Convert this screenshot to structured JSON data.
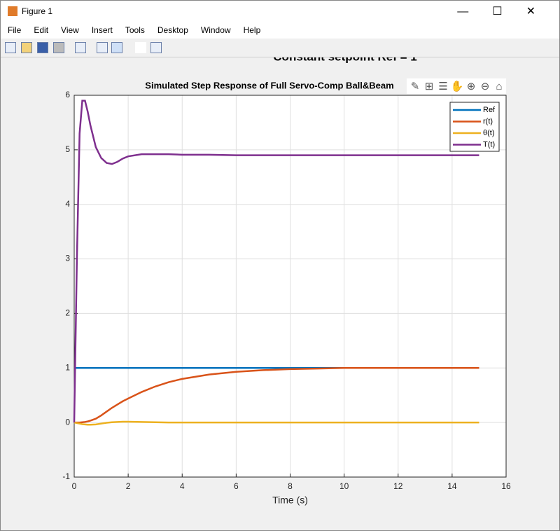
{
  "window": {
    "title": "Figure 1",
    "menu": [
      "File",
      "Edit",
      "View",
      "Insert",
      "Tools",
      "Desktop",
      "Window",
      "Help"
    ]
  },
  "chart_data": {
    "type": "line",
    "annotation": "Constant setpoint Ref = 1",
    "title": "Simulated Step Response of Full Servo-Comp Ball&Beam",
    "x_label": "Time (s)",
    "x": [
      0,
      0.1,
      0.2,
      0.3,
      0.4,
      0.5,
      0.6,
      0.8,
      1.0,
      1.2,
      1.4,
      1.6,
      1.8,
      2.0,
      2.5,
      3,
      3.5,
      4,
      5,
      6,
      7,
      8,
      9,
      10,
      11,
      12,
      13,
      14,
      15
    ],
    "series": [
      {
        "name": "Ref",
        "color": "#0072bd",
        "values": [
          1,
          1,
          1,
          1,
          1,
          1,
          1,
          1,
          1,
          1,
          1,
          1,
          1,
          1,
          1,
          1,
          1,
          1,
          1,
          1,
          1,
          1,
          1,
          1,
          1,
          1,
          1,
          1,
          1
        ]
      },
      {
        "name": "r(t)",
        "color": "#d95319",
        "values": [
          0,
          0,
          0,
          0.005,
          0.01,
          0.02,
          0.035,
          0.07,
          0.13,
          0.2,
          0.27,
          0.33,
          0.39,
          0.44,
          0.56,
          0.66,
          0.74,
          0.8,
          0.88,
          0.93,
          0.96,
          0.98,
          0.99,
          1,
          1,
          1,
          1,
          1,
          1
        ]
      },
      {
        "name": "θ(t)",
        "color": "#edb120",
        "values": [
          0,
          -0.01,
          -0.02,
          -0.03,
          -0.035,
          -0.04,
          -0.04,
          -0.035,
          -0.02,
          -0.005,
          0.005,
          0.01,
          0.015,
          0.015,
          0.01,
          0.005,
          0,
          0,
          0,
          0,
          0,
          0,
          0,
          0,
          0,
          0,
          0,
          0,
          0
        ]
      },
      {
        "name": "T(t)",
        "color": "#7e2f8e",
        "values": [
          0,
          3.0,
          5.3,
          5.9,
          5.9,
          5.7,
          5.45,
          5.05,
          4.85,
          4.76,
          4.74,
          4.78,
          4.84,
          4.88,
          4.92,
          4.92,
          4.92,
          4.91,
          4.91,
          4.9,
          4.9,
          4.9,
          4.9,
          4.9,
          4.9,
          4.9,
          4.9,
          4.9,
          4.9
        ]
      }
    ],
    "xlim": [
      0,
      16
    ],
    "xticks": [
      0,
      2,
      4,
      6,
      8,
      10,
      12,
      14,
      16
    ],
    "ylim": [
      -1,
      6
    ],
    "yticks": [
      -1,
      0,
      1,
      2,
      3,
      4,
      5,
      6
    ],
    "grid": true,
    "legend": "northeast"
  }
}
